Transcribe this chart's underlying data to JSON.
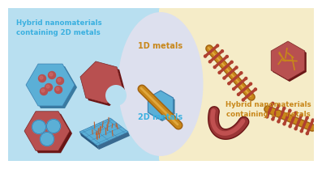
{
  "bg_left_color": "#b8dff0",
  "bg_right_color": "#f5ecc8",
  "bg_center_color": "#dde0ee",
  "title_left": "Hybrid nanomaterials\ncontaining 2D metals",
  "title_right": "Hybrid nanomaterials\ncontaining 1D metals",
  "label_1d": "1D metals",
  "label_2d": "2D metals",
  "title_color_left": "#3ab0e0",
  "title_color_right": "#c8871a",
  "label_1d_color": "#c8871a",
  "label_2d_color": "#3ab0e0",
  "blue_hex_color": "#5bafd6",
  "blue_hex_dark": "#3a7fb0",
  "red_hex_color": "#b85050",
  "red_hex_dark": "#7a2525",
  "gold_color": "#c8871a",
  "gold_dark": "#a06010",
  "gold_light": "#e0a840",
  "dark_red": "#9a3535",
  "dark_red2": "#6a1515",
  "spike_color": "#b04030"
}
